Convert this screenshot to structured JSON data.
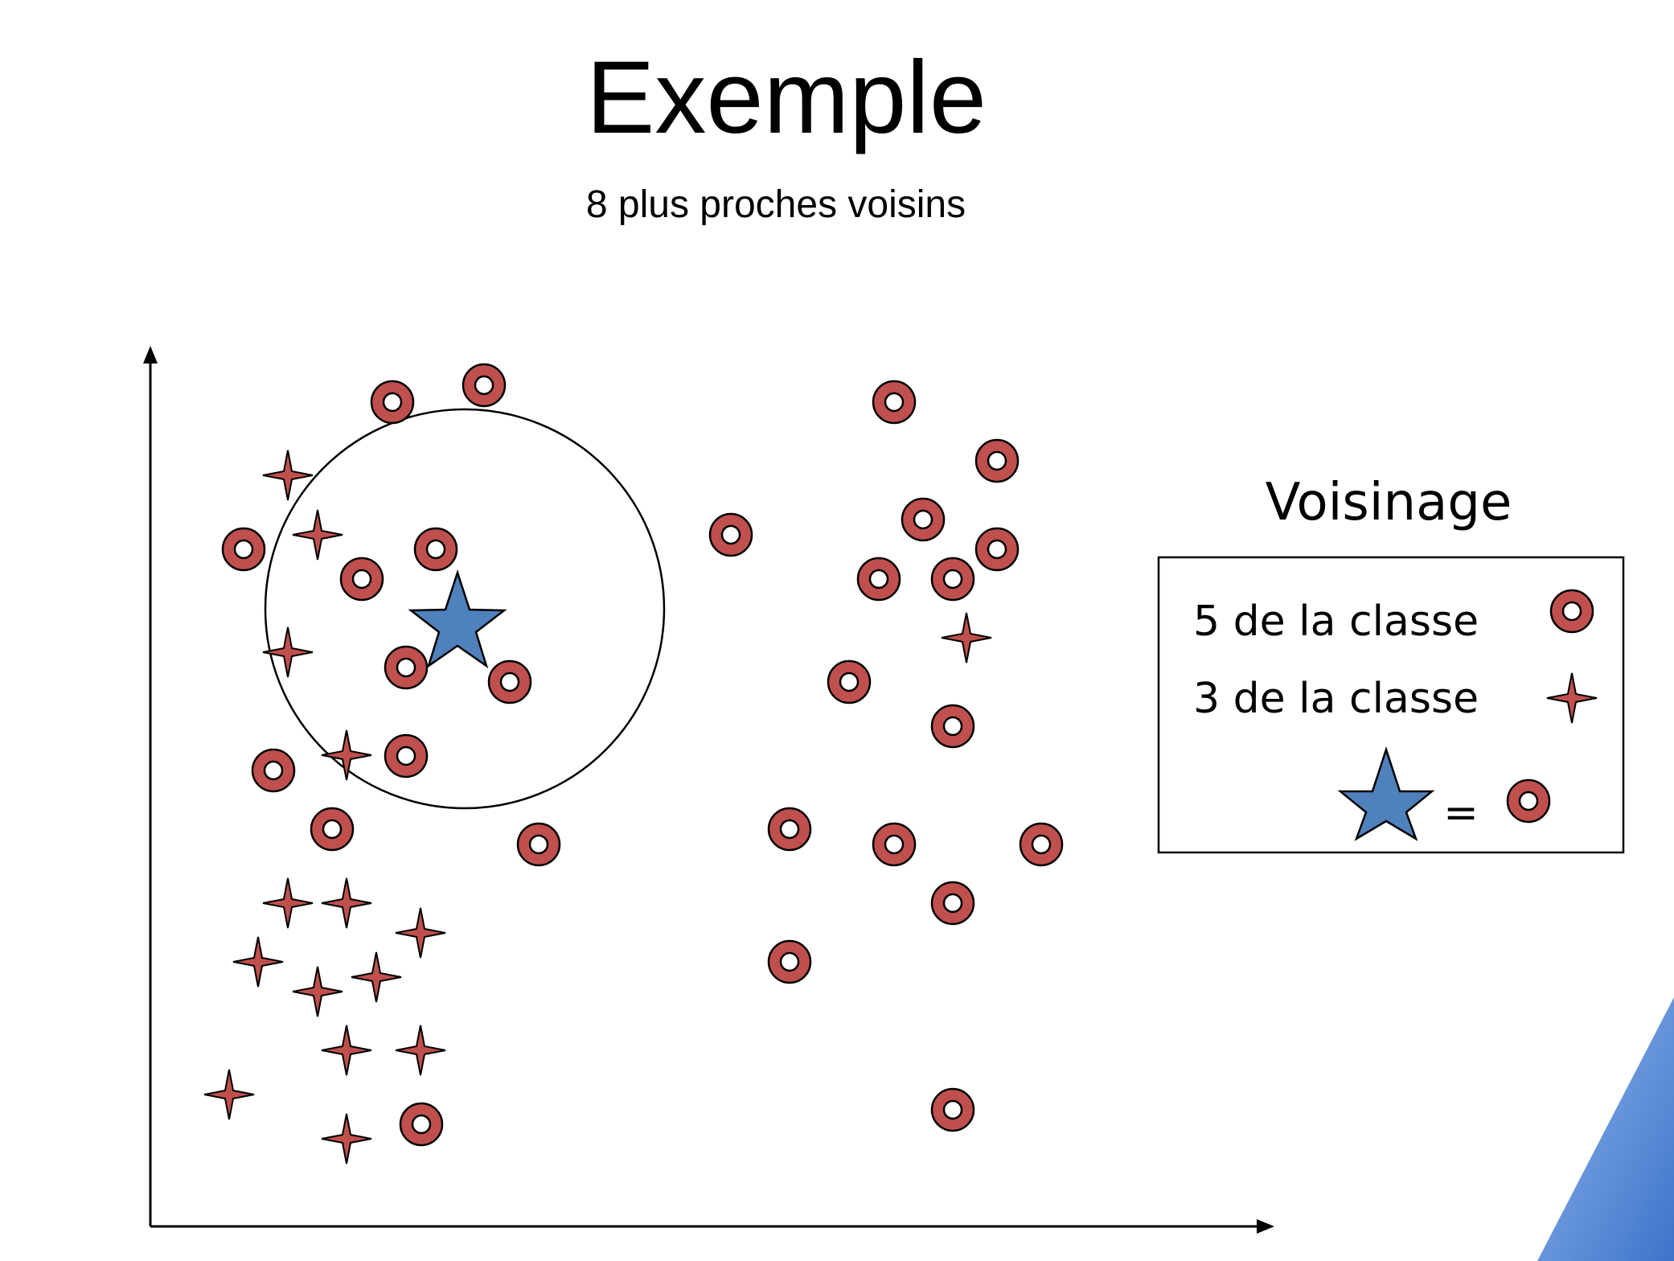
{
  "slide": {
    "title": "Exemple",
    "subtitle": "8 plus proches voisins"
  },
  "legend": {
    "heading": "Voisinage",
    "row_circle": "5 de la classe",
    "row_cross": "3 de la classe",
    "equals": "="
  },
  "colors": {
    "point_fill": "#c0504d",
    "query_fill": "#4f81bd",
    "accent_triangle": "#5b8fd9"
  },
  "icons": {
    "circle_class": "ring-marker-icon",
    "cross_class": "four-point-star-icon",
    "query": "five-point-star-icon"
  }
}
